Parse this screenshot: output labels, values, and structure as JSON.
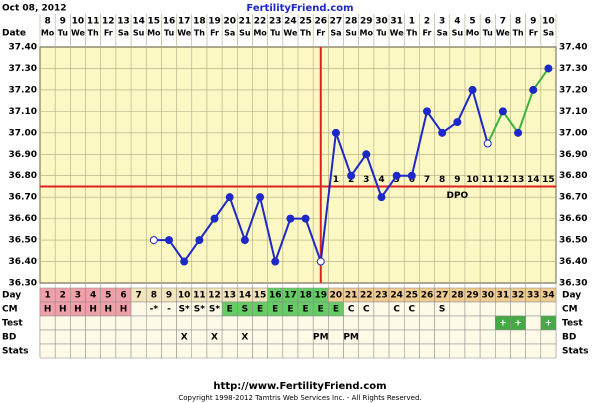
{
  "header": {
    "date": "Oct 08, 2012",
    "site": "FertilityFriend.com"
  },
  "chart_data": {
    "type": "line",
    "date_label": "Date",
    "dates": [
      "8",
      "9",
      "10",
      "11",
      "12",
      "13",
      "14",
      "15",
      "16",
      "17",
      "18",
      "19",
      "20",
      "21",
      "22",
      "23",
      "24",
      "25",
      "26",
      "27",
      "28",
      "29",
      "30",
      "31",
      "1",
      "2",
      "3",
      "4",
      "5",
      "6",
      "7",
      "8",
      "9",
      "10"
    ],
    "weekdays": [
      "Mo",
      "Tu",
      "We",
      "Th",
      "Fr",
      "Sa",
      "Su",
      "Mo",
      "Tu",
      "We",
      "Th",
      "Fr",
      "Sa",
      "Su",
      "Mo",
      "Tu",
      "We",
      "Th",
      "Fr",
      "Sa",
      "Su",
      "Mo",
      "Tu",
      "We",
      "Th",
      "Fr",
      "Sa",
      "Su",
      "Mo",
      "Tu",
      "We",
      "Th",
      "Fr",
      "Sa"
    ],
    "day_label": "Day",
    "cycle_days": [
      1,
      2,
      3,
      4,
      5,
      6,
      7,
      8,
      9,
      10,
      11,
      12,
      13,
      14,
      15,
      16,
      17,
      18,
      19,
      20,
      21,
      22,
      23,
      24,
      25,
      26,
      27,
      28,
      29,
      30,
      31,
      32,
      33,
      34
    ],
    "day_colors": [
      "#f0a0a8",
      "#f0a0a8",
      "#f0a0a8",
      "#f0a0a8",
      "#f0a0a8",
      "#f0a0a8",
      "#f2e4bc",
      "#f2e4bc",
      "#f2e4bc",
      "#f2e4bc",
      "#f2e4bc",
      "#f2e4bc",
      "#f2e4bc",
      "#f2e4bc",
      "#f2e4bc",
      "#66cc66",
      "#66cc66",
      "#66cc66",
      "#66cc66",
      "#f0cc90",
      "#f0cc90",
      "#f0cc90",
      "#f0cc90",
      "#f0cc90",
      "#f0cc90",
      "#f0cc90",
      "#f0cc90",
      "#f0cc90",
      "#f0cc90",
      "#f0cc90",
      "#f0cc90",
      "#f0cc90",
      "#f0cc90",
      "#f0cc90"
    ],
    "series": [
      {
        "color": "#1c28c8",
        "values": [
          null,
          null,
          null,
          null,
          null,
          null,
          null,
          36.5,
          36.5,
          36.4,
          36.5,
          36.6,
          36.7,
          36.5,
          36.7,
          36.4,
          36.6,
          36.6,
          36.4,
          37.0,
          36.8,
          36.9,
          36.7,
          36.8,
          36.8,
          37.1,
          37.0,
          37.05,
          37.2,
          36.95,
          null,
          null,
          null,
          null
        ]
      },
      {
        "color": "#3cb43c",
        "values": [
          null,
          null,
          null,
          null,
          null,
          null,
          null,
          null,
          null,
          null,
          null,
          null,
          null,
          null,
          null,
          null,
          null,
          null,
          null,
          null,
          null,
          null,
          null,
          null,
          null,
          null,
          null,
          null,
          null,
          null,
          37.1,
          37.0,
          37.2,
          37.3
        ]
      }
    ],
    "open_points": [
      7,
      18,
      29
    ],
    "coverline": 36.75,
    "ovulation_day": 19,
    "line_color": "#e02020",
    "dpo": [
      null,
      null,
      null,
      null,
      null,
      null,
      null,
      null,
      null,
      null,
      null,
      null,
      null,
      null,
      null,
      null,
      null,
      null,
      null,
      1,
      2,
      3,
      4,
      5,
      6,
      7,
      8,
      9,
      10,
      11,
      12,
      13,
      14,
      15
    ],
    "dpo_label": "DPO",
    "ylim": [
      36.3,
      37.4
    ],
    "yticks": [
      {
        "value": 36.3,
        "label": "36.30"
      },
      {
        "value": 36.4,
        "label": "36.40"
      },
      {
        "value": 36.5,
        "label": "36.50"
      },
      {
        "value": 36.6,
        "label": "36.60"
      },
      {
        "value": 36.7,
        "label": "36.70"
      },
      {
        "value": 36.8,
        "label": "36.80"
      },
      {
        "value": 36.9,
        "label": "36.90"
      },
      {
        "value": 37.0,
        "label": "37.00"
      },
      {
        "value": 37.1,
        "label": "37.10"
      },
      {
        "value": 37.2,
        "label": "37.20"
      },
      {
        "value": 37.3,
        "label": "37.30"
      },
      {
        "value": 37.4,
        "label": "37.40"
      }
    ],
    "grid": true,
    "rows": [
      {
        "label": "CM",
        "cells": [
          "H",
          "H",
          "H",
          "H",
          "H",
          "H",
          null,
          "-*",
          "-",
          "S*",
          "S*",
          "S*",
          "E",
          "S",
          "E",
          "E",
          "E",
          "E",
          "E",
          "E",
          "C",
          "C",
          null,
          "C",
          "C",
          null,
          "S",
          null,
          null,
          null,
          null,
          null,
          null,
          null
        ],
        "cell_colors": [
          "#f0a0a8",
          "#f0a0a8",
          "#f0a0a8",
          "#f0a0a8",
          "#f0a0a8",
          "#f0a0a8",
          null,
          null,
          null,
          null,
          null,
          null,
          "#66cc66",
          "#66cc66",
          "#66cc66",
          "#66cc66",
          "#66cc66",
          "#66cc66",
          "#66cc66",
          "#66cc66",
          null,
          null,
          null,
          null,
          null,
          null,
          null,
          null,
          null,
          null,
          null,
          null,
          null,
          null
        ]
      },
      {
        "label": "Test",
        "cells": [
          null,
          null,
          null,
          null,
          null,
          null,
          null,
          null,
          null,
          null,
          null,
          null,
          null,
          null,
          null,
          null,
          null,
          null,
          null,
          null,
          null,
          null,
          null,
          null,
          null,
          null,
          null,
          null,
          null,
          null,
          "+",
          "+",
          null,
          "+"
        ],
        "cell_colors": [
          null,
          null,
          null,
          null,
          null,
          null,
          null,
          null,
          null,
          null,
          null,
          null,
          null,
          null,
          null,
          null,
          null,
          null,
          null,
          null,
          null,
          null,
          null,
          null,
          null,
          null,
          null,
          null,
          null,
          null,
          "#44aa44",
          "#44aa44",
          null,
          "#44aa44"
        ]
      },
      {
        "label": "BD",
        "cells": [
          null,
          null,
          null,
          null,
          null,
          null,
          null,
          null,
          null,
          "X",
          null,
          "X",
          null,
          "X",
          null,
          null,
          null,
          null,
          "PM",
          null,
          "PM",
          null,
          null,
          null,
          null,
          null,
          null,
          null,
          null,
          null,
          null,
          null,
          null,
          null
        ]
      },
      {
        "label": "Stats",
        "cells": [
          null,
          null,
          null,
          null,
          null,
          null,
          null,
          null,
          null,
          null,
          null,
          null,
          null,
          null,
          null,
          null,
          null,
          null,
          null,
          null,
          null,
          null,
          null,
          null,
          null,
          null,
          null,
          null,
          null,
          null,
          null,
          null,
          null,
          null
        ]
      }
    ]
  },
  "footer": {
    "url": "http://www.FertilityFriend.com",
    "copyright": "Copyright 1998-2012 Tamtris Web Services Inc. - All Rights Reserved."
  }
}
